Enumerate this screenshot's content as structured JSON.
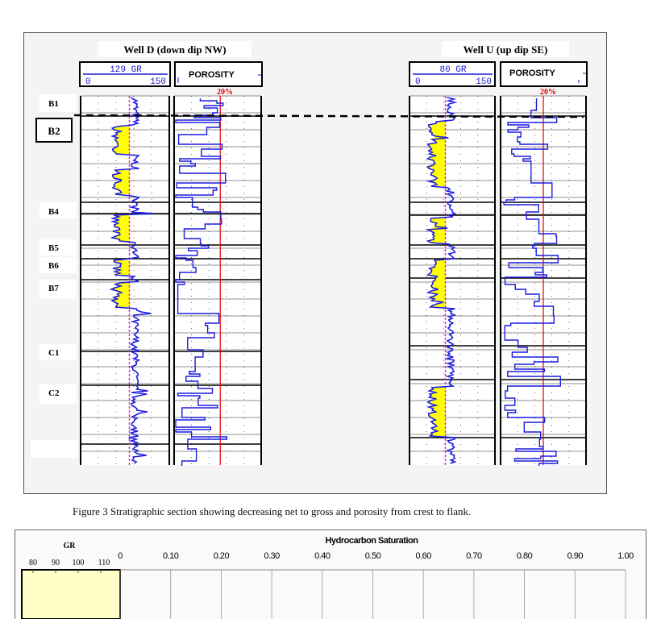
{
  "figure": {
    "wells": [
      {
        "title": "Well D (down dip NW)",
        "gr_scale_top": "129  GR",
        "gr_scale_bottom_min": "0",
        "gr_scale_bottom_max": "150",
        "porosity_label": "POROSITY",
        "porosity_marker": "20%"
      },
      {
        "title": "Well U (up dip SE)",
        "gr_scale_top": "80  GR",
        "gr_scale_bottom_min": "0",
        "gr_scale_bottom_max": "150",
        "porosity_label": "POROSITY",
        "porosity_marker": "20%"
      }
    ],
    "markers": [
      "B1",
      "B2",
      "B4",
      "B5",
      "B6",
      "B7",
      "C1",
      "C2"
    ],
    "caption": "Figure 3 Stratigraphic section showing decreasing net to gross and porosity from crest to flank."
  },
  "chart2": {
    "gr_title": "GR",
    "gr_ticks": [
      "80",
      "90",
      "100",
      "110"
    ],
    "hc_title": "Hydrocarbon Saturation",
    "hc_ticks": [
      "0",
      "0.10",
      "0.20",
      "0.30",
      "0.40",
      "0.50",
      "0.60",
      "0.70",
      "0.80",
      "0.90",
      "1.00"
    ]
  },
  "colors": {
    "curve": "#1c1ce0",
    "sand_fill": "#ffff00",
    "cutoff": "#e00000",
    "gr_box_fill": "#ffffc8"
  }
}
